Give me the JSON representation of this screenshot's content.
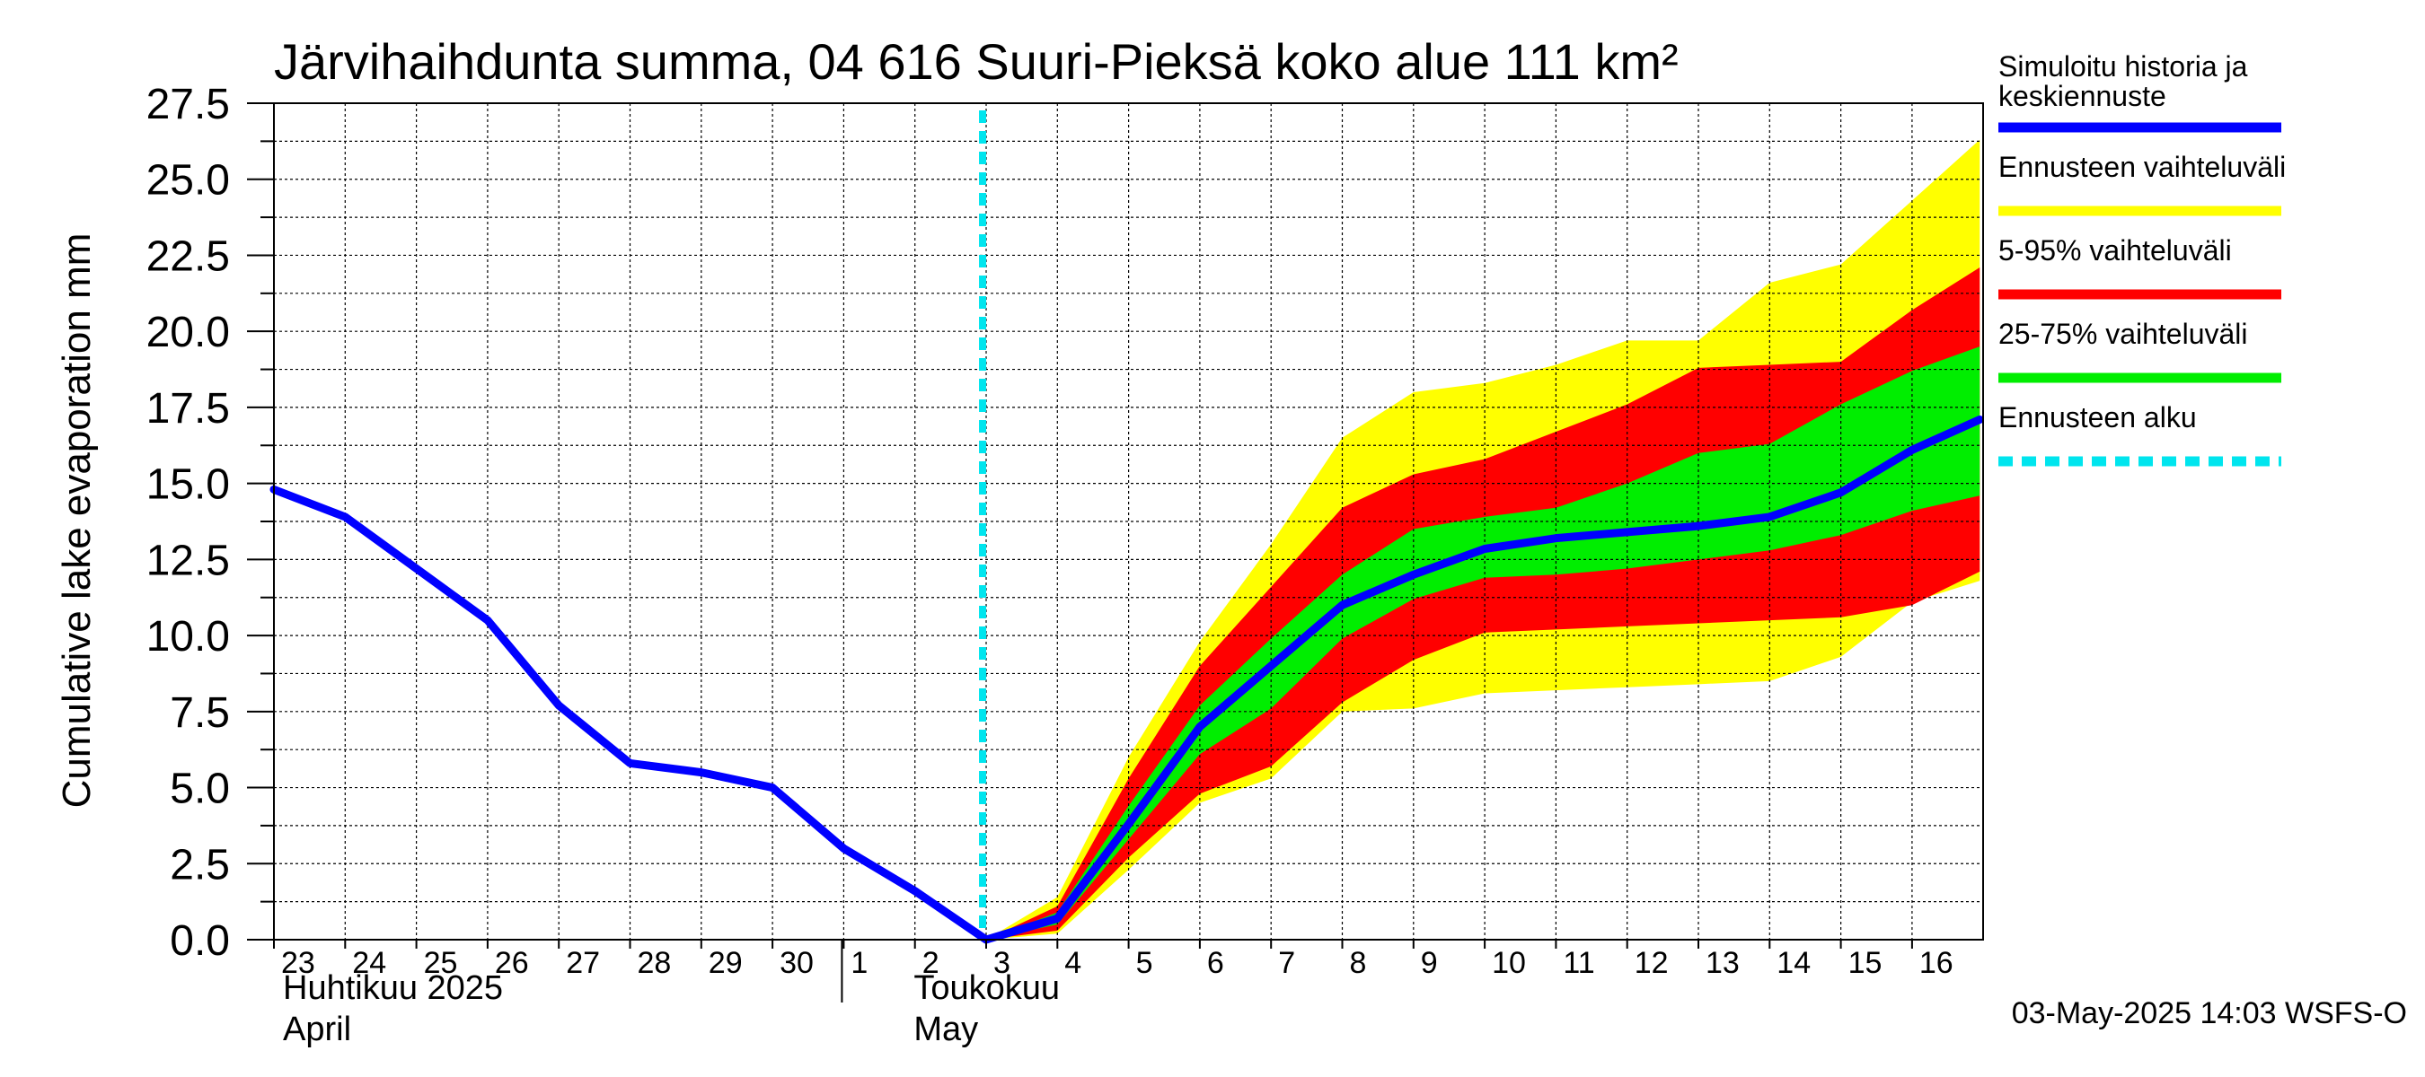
{
  "chart_data": {
    "type": "area",
    "title": "Järvihaihdunta summa, 04 616 Suuri-Pieksä koko alue 111 km²",
    "ylabel": "Cumulative lake evaporation   mm",
    "ylim": [
      0,
      27.5
    ],
    "yticks": [
      "0.0",
      "2.5",
      "5.0",
      "7.5",
      "10.0",
      "12.5",
      "15.0",
      "17.5",
      "20.0",
      "22.5",
      "25.0",
      "27.5"
    ],
    "x_days": [
      "23",
      "24",
      "25",
      "26",
      "27",
      "28",
      "29",
      "30",
      "1",
      "2",
      "3",
      "4",
      "5",
      "6",
      "7",
      "8",
      "9",
      "10",
      "11",
      "12",
      "13",
      "14",
      "15",
      "16"
    ],
    "month_labels": [
      {
        "fi": "Huhtikuu  2025",
        "en": "April"
      },
      {
        "fi": "Toukokuu",
        "en": "May"
      }
    ],
    "forecast_start_day_index": 9.95,
    "series": [
      {
        "name": "Simuloitu historia ja keskiennuste",
        "color": "#0000ff",
        "x": [
          0,
          1,
          2,
          3,
          4,
          5,
          6,
          7,
          8,
          9,
          10,
          11,
          12,
          13,
          14,
          15,
          16,
          17,
          18,
          19,
          20,
          21,
          22,
          23,
          23.95
        ],
        "values": [
          14.8,
          13.9,
          12.2,
          10.5,
          7.7,
          5.8,
          5.5,
          5.0,
          3.0,
          1.6,
          0.0,
          0.7,
          3.8,
          7.0,
          9.0,
          11.0,
          12.0,
          12.85,
          13.2,
          13.4,
          13.6,
          13.9,
          14.7,
          16.1,
          17.1
        ]
      }
    ],
    "bands": [
      {
        "name": "Ennusteen vaihteluväli",
        "color": "#ffff00",
        "x": [
          10,
          11,
          12,
          13,
          14,
          15,
          16,
          17,
          18,
          19,
          20,
          21,
          22,
          23,
          23.95
        ],
        "upper": [
          0.0,
          1.4,
          6.0,
          9.8,
          13.0,
          16.5,
          18.0,
          18.3,
          18.9,
          19.7,
          19.7,
          21.6,
          22.2,
          24.3,
          26.3
        ],
        "lower": [
          0.0,
          0.2,
          2.3,
          4.5,
          5.3,
          7.5,
          7.6,
          8.1,
          8.2,
          8.3,
          8.4,
          8.5,
          9.3,
          11.1,
          11.8
        ]
      },
      {
        "name": "5-95% vaihteluväli",
        "color": "#ff0000",
        "x": [
          10,
          11,
          12,
          13,
          14,
          15,
          16,
          17,
          18,
          19,
          20,
          21,
          22,
          23,
          23.95
        ],
        "upper": [
          0.0,
          1.1,
          5.3,
          9.0,
          11.6,
          14.2,
          15.3,
          15.8,
          16.7,
          17.6,
          18.8,
          18.9,
          19.0,
          20.7,
          22.1
        ],
        "lower": [
          0.0,
          0.3,
          2.7,
          4.8,
          5.7,
          7.8,
          9.2,
          10.1,
          10.2,
          10.3,
          10.4,
          10.5,
          10.6,
          11.0,
          12.1
        ]
      },
      {
        "name": "25-75% vaihteluväli",
        "color": "#00ee00",
        "x": [
          10,
          11,
          12,
          13,
          14,
          15,
          16,
          17,
          18,
          19,
          20,
          21,
          22,
          23,
          23.95
        ],
        "upper": [
          0.0,
          0.9,
          4.4,
          7.7,
          9.9,
          12.0,
          13.5,
          13.9,
          14.2,
          15.0,
          16.0,
          16.3,
          17.6,
          18.7,
          19.5
        ],
        "lower": [
          0.0,
          0.5,
          3.3,
          6.1,
          7.6,
          9.9,
          11.2,
          11.9,
          12.0,
          12.2,
          12.5,
          12.8,
          13.3,
          14.1,
          14.6
        ]
      }
    ],
    "legend": [
      {
        "label": "Simuloitu historia ja",
        "label2": "keskiennuste",
        "color": "#0000ff",
        "style": "solid"
      },
      {
        "label": "Ennusteen vaihteluväli",
        "label2": "",
        "color": "#ffff00",
        "style": "solid"
      },
      {
        "label": "5-95% vaihteluväli",
        "label2": "",
        "color": "#ff0000",
        "style": "solid"
      },
      {
        "label": "25-75% vaihteluväli",
        "label2": "",
        "color": "#00ee00",
        "style": "solid"
      },
      {
        "label": "Ennusteen alku",
        "label2": "",
        "color": "#00e5ee",
        "style": "dashed"
      }
    ],
    "legend_position": "right",
    "grid": true,
    "footer": "03-May-2025 14:03 WSFS-O"
  }
}
